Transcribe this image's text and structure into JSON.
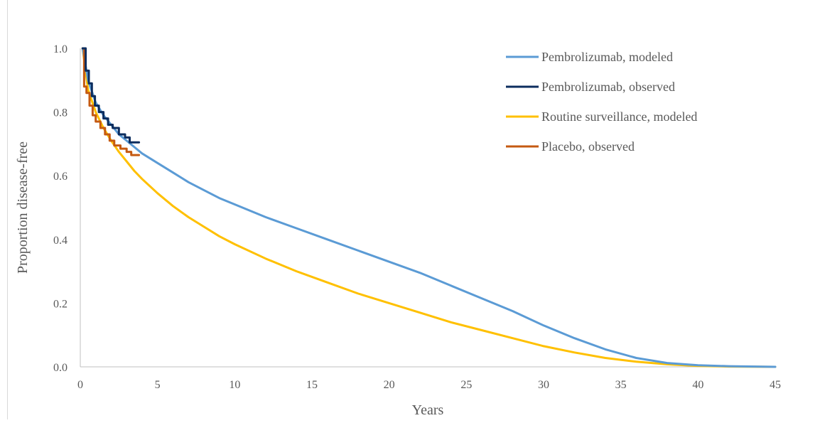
{
  "chart_data": {
    "type": "line",
    "title": "",
    "xlabel": "Years",
    "ylabel": "Proportion disease-free",
    "xlim": [
      0,
      45
    ],
    "ylim": [
      0,
      1.0
    ],
    "x_ticks": [
      "0",
      "5",
      "10",
      "15",
      "20",
      "25",
      "30",
      "35",
      "40",
      "45"
    ],
    "y_ticks": [
      "0.0",
      "0.2",
      "0.4",
      "0.6",
      "0.8",
      "1.0"
    ],
    "grid": false,
    "legend_position": "top-right",
    "series": [
      {
        "name": "Pembrolizumab, modeled",
        "color": "#5b9bd5",
        "x": [
          0.15,
          0.5,
          1,
          1.5,
          2,
          2.5,
          3,
          3.5,
          4,
          5,
          6,
          7,
          8,
          9,
          10,
          12,
          14,
          16,
          18,
          20,
          22,
          24,
          26,
          28,
          30,
          32,
          34,
          36,
          38,
          40,
          42,
          45
        ],
        "y": [
          1.0,
          0.9,
          0.83,
          0.79,
          0.76,
          0.73,
          0.71,
          0.69,
          0.67,
          0.64,
          0.61,
          0.58,
          0.555,
          0.53,
          0.51,
          0.47,
          0.435,
          0.4,
          0.365,
          0.33,
          0.295,
          0.255,
          0.215,
          0.175,
          0.13,
          0.09,
          0.055,
          0.028,
          0.012,
          0.005,
          0.002,
          0.0
        ]
      },
      {
        "name": "Pembrolizumab, observed",
        "color": "#0c2d5e",
        "step": true,
        "x": [
          0.15,
          0.35,
          0.55,
          0.75,
          0.95,
          1.2,
          1.5,
          1.8,
          2.1,
          2.5,
          2.9,
          3.2,
          3.8
        ],
        "y": [
          1.0,
          0.93,
          0.89,
          0.85,
          0.82,
          0.8,
          0.78,
          0.76,
          0.75,
          0.73,
          0.72,
          0.705,
          0.705
        ]
      },
      {
        "name": "Routine surveillance, modeled",
        "color": "#ffc000",
        "x": [
          0.15,
          0.5,
          1,
          1.5,
          2,
          2.5,
          3,
          3.5,
          4,
          5,
          6,
          7,
          8,
          9,
          10,
          12,
          14,
          16,
          18,
          20,
          22,
          24,
          26,
          28,
          30,
          32,
          34,
          36,
          38,
          40,
          42,
          45
        ],
        "y": [
          1.0,
          0.87,
          0.8,
          0.75,
          0.71,
          0.675,
          0.645,
          0.615,
          0.59,
          0.545,
          0.505,
          0.47,
          0.44,
          0.41,
          0.385,
          0.34,
          0.3,
          0.265,
          0.23,
          0.2,
          0.17,
          0.14,
          0.115,
          0.09,
          0.065,
          0.045,
          0.028,
          0.016,
          0.008,
          0.003,
          0.001,
          0.0
        ]
      },
      {
        "name": "Placebo, observed",
        "color": "#c55a11",
        "step": true,
        "x": [
          0.15,
          0.25,
          0.4,
          0.6,
          0.8,
          1.0,
          1.3,
          1.6,
          1.9,
          2.2,
          2.6,
          3.0,
          3.3,
          3.8
        ],
        "y": [
          1.0,
          0.88,
          0.86,
          0.82,
          0.79,
          0.77,
          0.75,
          0.73,
          0.71,
          0.695,
          0.685,
          0.675,
          0.665,
          0.665
        ]
      }
    ]
  }
}
